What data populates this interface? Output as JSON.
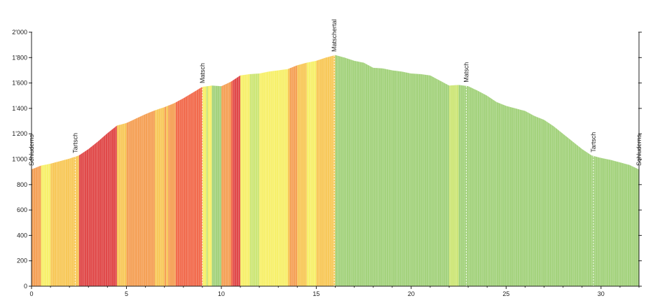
{
  "chart_data": {
    "type": "area",
    "title": "",
    "xlabel": "",
    "ylabel": "",
    "xlim": [
      0,
      32
    ],
    "ylim": [
      0,
      2000
    ],
    "x_ticks": [
      0,
      5,
      10,
      15,
      20,
      25,
      30
    ],
    "x_tick_labels": [
      "0",
      "5",
      "10",
      "15",
      "20",
      "25",
      "30"
    ],
    "y_ticks": [
      0,
      200,
      400,
      600,
      800,
      1000,
      1200,
      1400,
      1600,
      1800,
      2000
    ],
    "y_tick_labels": [
      "0",
      "200",
      "400",
      "600",
      "800",
      "1'000",
      "1'200",
      "1'400",
      "1'600",
      "1'800",
      "2'000"
    ],
    "grid": false,
    "profile_km": [
      0,
      0.5,
      1,
      1.5,
      2,
      2.5,
      3,
      3.5,
      4,
      4.5,
      5,
      5.5,
      6,
      6.5,
      7,
      7.5,
      8,
      8.5,
      9,
      9.5,
      10,
      10.5,
      11,
      11.5,
      12,
      12.5,
      13,
      13.5,
      14,
      14.5,
      15,
      15.5,
      16,
      16.5,
      17,
      17.5,
      18,
      18.5,
      19,
      19.5,
      20,
      20.5,
      21,
      21.5,
      22,
      22.5,
      23,
      23.5,
      24,
      24.5,
      25,
      25.5,
      26,
      26.5,
      27,
      27.5,
      28,
      28.5,
      29,
      29.5,
      30,
      30.5,
      31,
      31.5,
      32
    ],
    "profile_elevation_m": [
      920,
      950,
      965,
      985,
      1005,
      1030,
      1080,
      1140,
      1205,
      1265,
      1285,
      1320,
      1355,
      1385,
      1410,
      1440,
      1480,
      1525,
      1570,
      1580,
      1575,
      1610,
      1660,
      1670,
      1675,
      1690,
      1700,
      1710,
      1740,
      1760,
      1775,
      1800,
      1820,
      1800,
      1775,
      1760,
      1720,
      1715,
      1700,
      1690,
      1675,
      1670,
      1660,
      1620,
      1580,
      1585,
      1575,
      1540,
      1500,
      1450,
      1420,
      1400,
      1380,
      1340,
      1310,
      1260,
      1200,
      1140,
      1080,
      1030,
      1010,
      995,
      975,
      955,
      920
    ],
    "waypoints": [
      {
        "name": "Schluderns",
        "km": 0
      },
      {
        "name": "Tartsch",
        "km": 2.3
      },
      {
        "name": "Matsch",
        "km": 9.0
      },
      {
        "name": "Matschertal",
        "km": 15.95
      },
      {
        "name": "Matsch",
        "km": 22.9
      },
      {
        "name": "Tartsch",
        "km": 29.6
      },
      {
        "name": "Schluderns",
        "km": 32
      }
    ],
    "gradient_colors": {
      "descent": "#a3d27c",
      "0-2": "#cde676",
      "2-4": "#f7f06a",
      "4-6": "#f8c858",
      "6-8": "#f5a055",
      "8-10": "#f26a4c",
      "10+": "#e04848"
    }
  }
}
